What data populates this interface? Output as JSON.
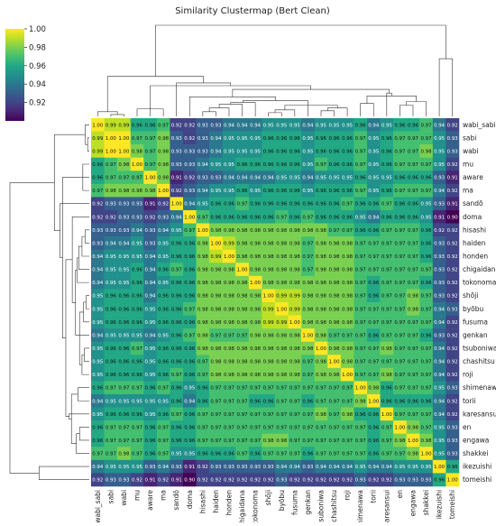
{
  "chart_data": {
    "type": "heatmap",
    "title": "Similarity Clustermap (Bert Clean)",
    "labels": [
      "wabi_sabi",
      "sabi",
      "wabi",
      "mu",
      "aware",
      "ma",
      "sandō",
      "doma",
      "hisashi",
      "haiden",
      "honden",
      "chigaidana",
      "tokonoma",
      "shōji",
      "byōbu",
      "fusuma",
      "genkan",
      "tsuboniwa",
      "chashitsu",
      "roji",
      "shimenawa",
      "torii",
      "karesansui",
      "en",
      "engawa",
      "shakkei",
      "ikezuishi",
      "tomeishi"
    ],
    "values": [
      [
        1.0,
        0.99,
        0.99,
        0.96,
        0.96,
        0.97,
        0.92,
        0.92,
        0.93,
        0.93,
        0.94,
        0.94,
        0.94,
        0.95,
        0.95,
        0.95,
        0.94,
        0.95,
        0.95,
        0.95,
        0.96,
        0.94,
        0.95,
        0.96,
        0.96,
        0.97,
        0.94,
        0.92
      ],
      [
        0.99,
        1.0,
        1.0,
        0.97,
        0.97,
        0.98,
        0.93,
        0.92,
        0.93,
        0.94,
        0.95,
        0.95,
        0.95,
        0.96,
        0.96,
        0.96,
        0.95,
        0.96,
        0.96,
        0.96,
        0.97,
        0.95,
        0.96,
        0.97,
        0.97,
        0.97,
        0.95,
        0.93
      ],
      [
        0.99,
        1.0,
        1.0,
        0.98,
        0.97,
        0.98,
        0.93,
        0.93,
        0.93,
        0.94,
        0.95,
        0.95,
        0.95,
        0.96,
        0.96,
        0.96,
        0.95,
        0.96,
        0.96,
        0.96,
        0.97,
        0.95,
        0.96,
        0.97,
        0.97,
        0.98,
        0.95,
        0.93
      ],
      [
        0.96,
        0.97,
        0.98,
        1.0,
        0.97,
        0.98,
        0.93,
        0.93,
        0.94,
        0.95,
        0.95,
        0.96,
        0.96,
        0.96,
        0.96,
        0.96,
        0.95,
        0.97,
        0.96,
        0.96,
        0.97,
        0.95,
        0.96,
        0.97,
        0.97,
        0.97,
        0.95,
        0.92
      ],
      [
        0.96,
        0.97,
        0.97,
        0.97,
        1.0,
        0.98,
        0.91,
        0.92,
        0.93,
        0.93,
        0.94,
        0.94,
        0.94,
        0.94,
        0.95,
        0.95,
        0.94,
        0.95,
        0.95,
        0.95,
        0.96,
        0.95,
        0.95,
        0.96,
        0.96,
        0.96,
        0.93,
        0.91
      ],
      [
        0.97,
        0.98,
        0.98,
        0.98,
        0.98,
        1.0,
        0.92,
        0.93,
        0.94,
        0.95,
        0.95,
        0.96,
        0.95,
        0.96,
        0.96,
        0.96,
        0.95,
        0.96,
        0.96,
        0.96,
        0.97,
        0.95,
        0.96,
        0.97,
        0.97,
        0.97,
        0.94,
        0.92
      ],
      [
        0.92,
        0.93,
        0.93,
        0.93,
        0.91,
        0.92,
        1.0,
        0.94,
        0.95,
        0.96,
        0.96,
        0.97,
        0.96,
        0.96,
        0.96,
        0.96,
        0.96,
        0.96,
        0.96,
        0.97,
        0.96,
        0.96,
        0.97,
        0.96,
        0.96,
        0.95,
        0.93,
        0.91
      ],
      [
        0.92,
        0.92,
        0.93,
        0.93,
        0.92,
        0.93,
        0.94,
        1.0,
        0.97,
        0.96,
        0.96,
        0.96,
        0.96,
        0.96,
        0.97,
        0.96,
        0.97,
        0.96,
        0.96,
        0.96,
        0.95,
        0.94,
        0.96,
        0.96,
        0.96,
        0.95,
        0.91,
        0.9
      ],
      [
        0.93,
        0.93,
        0.93,
        0.94,
        0.93,
        0.94,
        0.95,
        0.97,
        1.0,
        0.98,
        0.98,
        0.98,
        0.98,
        0.98,
        0.98,
        0.98,
        0.98,
        0.98,
        0.97,
        0.97,
        0.96,
        0.96,
        0.97,
        0.97,
        0.97,
        0.96,
        0.92,
        0.92
      ],
      [
        0.93,
        0.94,
        0.94,
        0.95,
        0.93,
        0.95,
        0.96,
        0.96,
        0.98,
        1.0,
        0.99,
        0.98,
        0.98,
        0.98,
        0.98,
        0.98,
        0.97,
        0.98,
        0.98,
        0.98,
        0.97,
        0.97,
        0.97,
        0.97,
        0.97,
        0.96,
        0.93,
        0.92
      ],
      [
        0.94,
        0.95,
        0.95,
        0.95,
        0.94,
        0.95,
        0.96,
        0.96,
        0.98,
        0.99,
        1.0,
        0.98,
        0.98,
        0.98,
        0.98,
        0.98,
        0.97,
        0.98,
        0.98,
        0.98,
        0.97,
        0.97,
        0.97,
        0.97,
        0.97,
        0.96,
        0.93,
        0.92
      ],
      [
        0.94,
        0.95,
        0.95,
        0.96,
        0.94,
        0.96,
        0.97,
        0.96,
        0.98,
        0.98,
        0.98,
        1.0,
        0.98,
        0.98,
        0.98,
        0.98,
        0.97,
        0.98,
        0.98,
        0.98,
        0.97,
        0.97,
        0.97,
        0.97,
        0.97,
        0.97,
        0.93,
        0.92
      ],
      [
        0.94,
        0.95,
        0.95,
        0.96,
        0.94,
        0.95,
        0.96,
        0.96,
        0.98,
        0.98,
        0.98,
        0.98,
        1.0,
        0.98,
        0.98,
        0.98,
        0.98,
        0.98,
        0.98,
        0.98,
        0.97,
        0.96,
        0.97,
        0.97,
        0.97,
        0.96,
        0.93,
        0.92
      ],
      [
        0.95,
        0.96,
        0.96,
        0.96,
        0.94,
        0.96,
        0.96,
        0.96,
        0.98,
        0.98,
        0.98,
        0.98,
        0.98,
        1.0,
        0.99,
        0.99,
        0.98,
        0.98,
        0.98,
        0.98,
        0.97,
        0.96,
        0.97,
        0.97,
        0.98,
        0.97,
        0.93,
        0.92
      ],
      [
        0.95,
        0.96,
        0.96,
        0.96,
        0.95,
        0.96,
        0.96,
        0.97,
        0.98,
        0.98,
        0.98,
        0.98,
        0.98,
        0.99,
        1.0,
        0.99,
        0.98,
        0.98,
        0.98,
        0.98,
        0.97,
        0.97,
        0.97,
        0.97,
        0.98,
        0.97,
        0.94,
        0.93
      ],
      [
        0.95,
        0.96,
        0.96,
        0.96,
        0.95,
        0.96,
        0.96,
        0.96,
        0.98,
        0.98,
        0.98,
        0.98,
        0.98,
        0.99,
        0.99,
        1.0,
        0.98,
        0.98,
        0.98,
        0.98,
        0.97,
        0.97,
        0.97,
        0.97,
        0.97,
        0.97,
        0.94,
        0.92
      ],
      [
        0.94,
        0.95,
        0.95,
        0.95,
        0.94,
        0.95,
        0.96,
        0.97,
        0.98,
        0.97,
        0.97,
        0.97,
        0.98,
        0.98,
        0.98,
        0.98,
        1.0,
        0.98,
        0.97,
        0.97,
        0.97,
        0.96,
        0.97,
        0.97,
        0.97,
        0.96,
        0.93,
        0.92
      ],
      [
        0.95,
        0.96,
        0.96,
        0.97,
        0.95,
        0.96,
        0.96,
        0.96,
        0.98,
        0.98,
        0.98,
        0.98,
        0.98,
        0.98,
        0.98,
        0.98,
        0.98,
        1.0,
        0.98,
        0.98,
        0.97,
        0.97,
        0.98,
        0.97,
        0.97,
        0.97,
        0.94,
        0.92
      ],
      [
        0.95,
        0.96,
        0.96,
        0.96,
        0.95,
        0.96,
        0.96,
        0.96,
        0.97,
        0.98,
        0.98,
        0.98,
        0.98,
        0.98,
        0.98,
        0.98,
        0.97,
        0.98,
        1.0,
        0.98,
        0.97,
        0.97,
        0.97,
        0.97,
        0.97,
        0.97,
        0.94,
        0.92
      ],
      [
        0.95,
        0.96,
        0.96,
        0.96,
        0.95,
        0.96,
        0.97,
        0.96,
        0.97,
        0.98,
        0.98,
        0.98,
        0.98,
        0.98,
        0.98,
        0.98,
        0.97,
        0.98,
        0.98,
        1.0,
        0.97,
        0.97,
        0.98,
        0.97,
        0.97,
        0.97,
        0.94,
        0.92
      ],
      [
        0.96,
        0.97,
        0.97,
        0.97,
        0.96,
        0.97,
        0.96,
        0.95,
        0.96,
        0.97,
        0.97,
        0.97,
        0.97,
        0.97,
        0.97,
        0.97,
        0.97,
        0.97,
        0.97,
        0.97,
        1.0,
        0.98,
        0.96,
        0.97,
        0.97,
        0.97,
        0.95,
        0.93
      ],
      [
        0.94,
        0.95,
        0.95,
        0.95,
        0.95,
        0.95,
        0.96,
        0.94,
        0.96,
        0.97,
        0.97,
        0.97,
        0.96,
        0.96,
        0.97,
        0.97,
        0.96,
        0.97,
        0.97,
        0.97,
        0.98,
        1.0,
        0.96,
        0.96,
        0.96,
        0.96,
        0.94,
        0.92
      ],
      [
        0.95,
        0.96,
        0.96,
        0.96,
        0.95,
        0.96,
        0.97,
        0.96,
        0.97,
        0.97,
        0.97,
        0.97,
        0.97,
        0.97,
        0.97,
        0.97,
        0.97,
        0.98,
        0.97,
        0.98,
        0.96,
        0.96,
        1.0,
        0.97,
        0.97,
        0.97,
        0.94,
        0.92
      ],
      [
        0.96,
        0.97,
        0.97,
        0.97,
        0.96,
        0.97,
        0.96,
        0.96,
        0.97,
        0.97,
        0.97,
        0.97,
        0.97,
        0.97,
        0.97,
        0.97,
        0.97,
        0.97,
        0.97,
        0.97,
        0.97,
        0.96,
        0.97,
        1.0,
        0.98,
        0.97,
        0.95,
        0.93
      ],
      [
        0.96,
        0.97,
        0.97,
        0.97,
        0.96,
        0.97,
        0.96,
        0.96,
        0.97,
        0.97,
        0.97,
        0.97,
        0.97,
        0.98,
        0.98,
        0.97,
        0.97,
        0.97,
        0.97,
        0.97,
        0.97,
        0.96,
        0.97,
        0.98,
        1.0,
        0.98,
        0.95,
        0.93
      ],
      [
        0.97,
        0.97,
        0.98,
        0.97,
        0.96,
        0.97,
        0.95,
        0.95,
        0.96,
        0.96,
        0.96,
        0.97,
        0.96,
        0.97,
        0.97,
        0.97,
        0.96,
        0.97,
        0.97,
        0.97,
        0.97,
        0.96,
        0.97,
        0.97,
        0.98,
        1.0,
        0.95,
        0.93
      ],
      [
        0.94,
        0.95,
        0.95,
        0.95,
        0.93,
        0.94,
        0.93,
        0.91,
        0.92,
        0.93,
        0.93,
        0.93,
        0.93,
        0.93,
        0.94,
        0.94,
        0.93,
        0.94,
        0.94,
        0.94,
        0.95,
        0.94,
        0.94,
        0.95,
        0.95,
        0.95,
        1.0,
        0.96
      ],
      [
        0.92,
        0.93,
        0.93,
        0.92,
        0.91,
        0.92,
        0.91,
        0.9,
        0.92,
        0.92,
        0.92,
        0.92,
        0.92,
        0.92,
        0.93,
        0.92,
        0.92,
        0.92,
        0.92,
        0.92,
        0.93,
        0.92,
        0.92,
        0.93,
        0.93,
        0.93,
        0.96,
        1.0
      ]
    ],
    "colorbar": {
      "colormap": "viridis",
      "range": [
        0.9,
        1.0
      ],
      "ticks": [
        "0.92",
        "0.94",
        "0.96",
        "0.98",
        "1.00"
      ],
      "tick_values": [
        0.92,
        0.94,
        0.96,
        0.98,
        1.0
      ]
    },
    "col_dendrogram": [
      [
        1,
        2,
        0.02
      ],
      [
        28,
        0,
        0.05
      ],
      [
        3,
        5,
        0.08
      ],
      [
        30,
        4,
        0.11
      ],
      [
        8,
        9,
        0.05
      ],
      [
        32,
        10,
        0.09
      ],
      [
        13,
        14,
        0.04
      ],
      [
        34,
        15,
        0.07
      ],
      [
        17,
        18,
        0.06
      ],
      [
        36,
        19,
        0.09
      ],
      [
        35,
        37,
        0.12
      ],
      [
        33,
        11,
        0.13
      ],
      [
        39,
        12,
        0.15
      ],
      [
        40,
        16,
        0.17
      ],
      [
        7,
        41,
        0.21
      ],
      [
        20,
        21,
        0.14
      ],
      [
        23,
        24,
        0.12
      ],
      [
        44,
        25,
        0.16
      ],
      [
        43,
        45,
        0.22
      ],
      [
        22,
        46,
        0.25
      ],
      [
        42,
        47,
        0.29
      ],
      [
        31,
        48,
        0.33
      ],
      [
        6,
        49,
        0.36
      ],
      [
        29,
        50,
        0.43
      ],
      [
        26,
        27,
        0.62
      ],
      [
        51,
        52,
        0.98
      ]
    ],
    "row_dendrogram": [
      [
        1,
        2,
        0.02
      ],
      [
        28,
        0,
        0.05
      ],
      [
        3,
        5,
        0.08
      ],
      [
        30,
        4,
        0.11
      ],
      [
        8,
        9,
        0.05
      ],
      [
        32,
        10,
        0.09
      ],
      [
        13,
        14,
        0.04
      ],
      [
        34,
        15,
        0.07
      ],
      [
        17,
        18,
        0.06
      ],
      [
        36,
        19,
        0.09
      ],
      [
        35,
        37,
        0.12
      ],
      [
        33,
        11,
        0.13
      ],
      [
        39,
        12,
        0.15
      ],
      [
        40,
        16,
        0.17
      ],
      [
        7,
        41,
        0.21
      ],
      [
        20,
        21,
        0.14
      ],
      [
        23,
        24,
        0.12
      ],
      [
        44,
        25,
        0.16
      ],
      [
        43,
        45,
        0.22
      ],
      [
        22,
        46,
        0.25
      ],
      [
        42,
        47,
        0.29
      ],
      [
        31,
        48,
        0.33
      ],
      [
        6,
        49,
        0.36
      ],
      [
        29,
        50,
        0.43
      ],
      [
        26,
        27,
        0.62
      ],
      [
        51,
        52,
        0.98
      ]
    ]
  }
}
